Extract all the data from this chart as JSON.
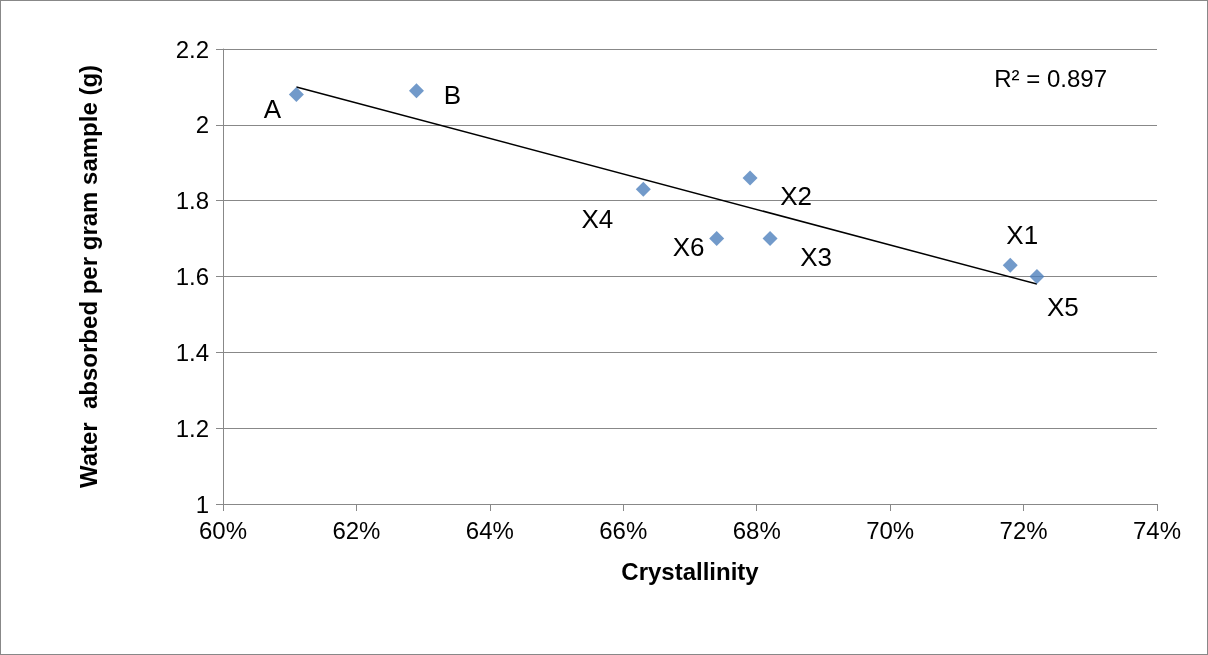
{
  "chart_data": {
    "type": "scatter",
    "xlabel": "Crystallinity",
    "ylabel": "Water  absorbed per gram sample (g)",
    "series": [
      {
        "color": "#4f81bd",
        "marker": "diamond",
        "x": [
          61.1,
          62.9,
          66.3,
          67.9,
          67.4,
          68.2,
          71.8,
          72.2
        ],
        "values": [
          2.08,
          2.09,
          1.83,
          1.86,
          1.7,
          1.7,
          1.63,
          1.6
        ]
      },
      {
        "type": "line",
        "color": "#000000",
        "marker": "none",
        "x": [
          61.1,
          72.2
        ],
        "values": [
          2.1,
          1.58
        ]
      }
    ],
    "xlim": [
      60,
      74
    ],
    "xticks": [
      {
        "value": 60,
        "label": "60%"
      },
      {
        "value": 62,
        "label": "62%"
      },
      {
        "value": 64,
        "label": "64%"
      },
      {
        "value": 66,
        "label": "66%"
      },
      {
        "value": 68,
        "label": "68%"
      },
      {
        "value": 70,
        "label": "70%"
      },
      {
        "value": 72,
        "label": "72%"
      },
      {
        "value": 74,
        "label": "74%"
      }
    ],
    "ylim": [
      1,
      2.2
    ],
    "yticks": [
      1,
      1.2,
      1.4,
      1.6,
      1.8,
      2,
      2.2
    ],
    "grid": "y",
    "annotations": [
      {
        "text": "A",
        "x": 61.1,
        "y": 2.08
      },
      {
        "text": "B",
        "x": 62.9,
        "y": 2.09
      },
      {
        "text": "X4",
        "x": 66.3,
        "y": 1.83
      },
      {
        "text": "X2",
        "x": 67.9,
        "y": 1.86
      },
      {
        "text": "X6",
        "x": 67.4,
        "y": 1.7
      },
      {
        "text": "X3",
        "x": 68.2,
        "y": 1.7
      },
      {
        "text": "X1",
        "x": 71.8,
        "y": 1.63
      },
      {
        "text": "X5",
        "x": 72.2,
        "y": 1.6
      },
      "R² = 0.897"
    ]
  }
}
